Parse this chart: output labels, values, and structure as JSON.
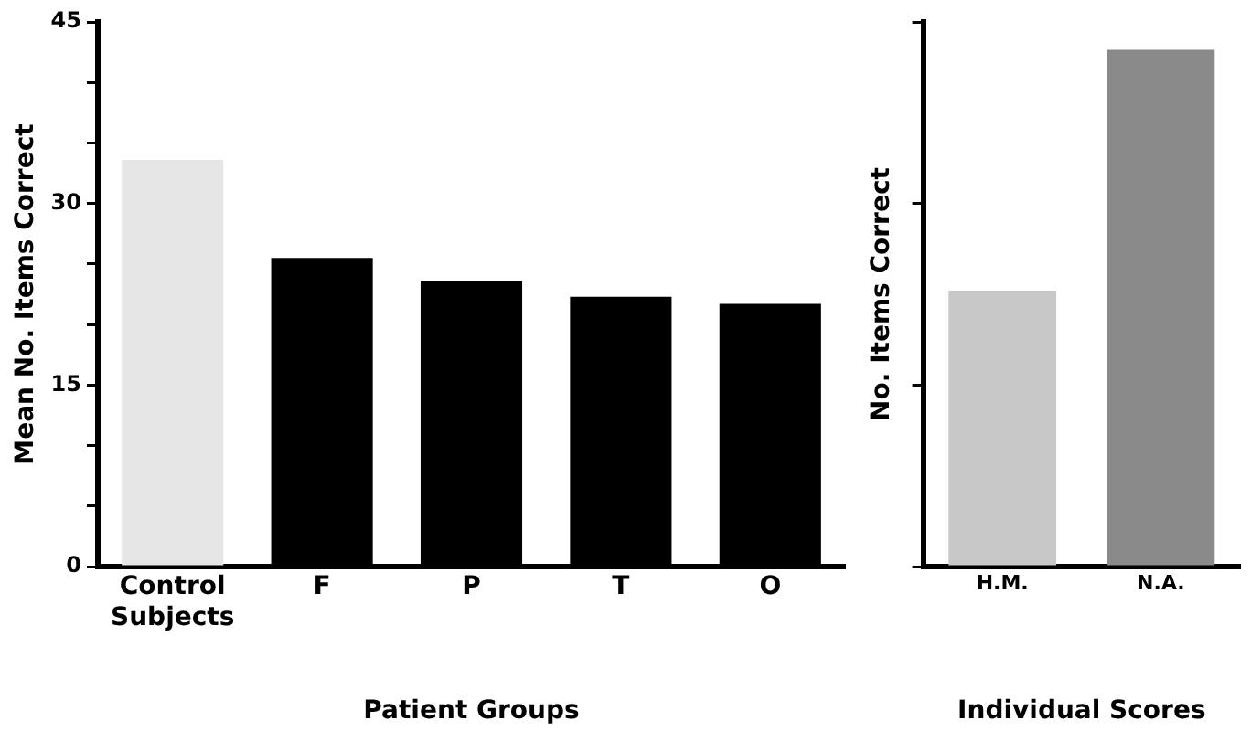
{
  "chart_data": [
    {
      "type": "bar",
      "ylabel": "Mean No. Items Correct",
      "xlabel": "Patient Groups",
      "categories": [
        "Control Subjects",
        "F",
        "P",
        "T",
        "O"
      ],
      "values": [
        33.6,
        25.5,
        23.6,
        22.3,
        21.7
      ],
      "colors": [
        "#e6e6e6",
        "#000000",
        "#000000",
        "#000000",
        "#000000"
      ],
      "ylim": [
        0,
        45
      ],
      "yticks": [
        0,
        {
          "value": 5,
          "label": null
        },
        {
          "value": 10,
          "label": null
        },
        15,
        {
          "value": 20,
          "label": null
        },
        {
          "value": 25,
          "label": null
        },
        30,
        {
          "value": 35,
          "label": null
        },
        {
          "value": 40,
          "label": null
        },
        45
      ],
      "grid": false,
      "legend": false
    },
    {
      "type": "bar",
      "ylabel": "No. Items Correct",
      "xlabel": "Individual Scores",
      "categories": [
        "H.M.",
        "N.A."
      ],
      "values": [
        22.8,
        42.7
      ],
      "colors": [
        "#c8c8c8",
        "#8a8a8a"
      ],
      "ylim": [
        0,
        45
      ],
      "yticks": [
        {
          "value": 0,
          "label": null
        },
        {
          "value": 15,
          "label": null
        },
        {
          "value": 30,
          "label": null
        },
        {
          "value": 45,
          "label": null
        }
      ],
      "tick_labels": "x",
      "grid": false,
      "legend": false
    }
  ]
}
